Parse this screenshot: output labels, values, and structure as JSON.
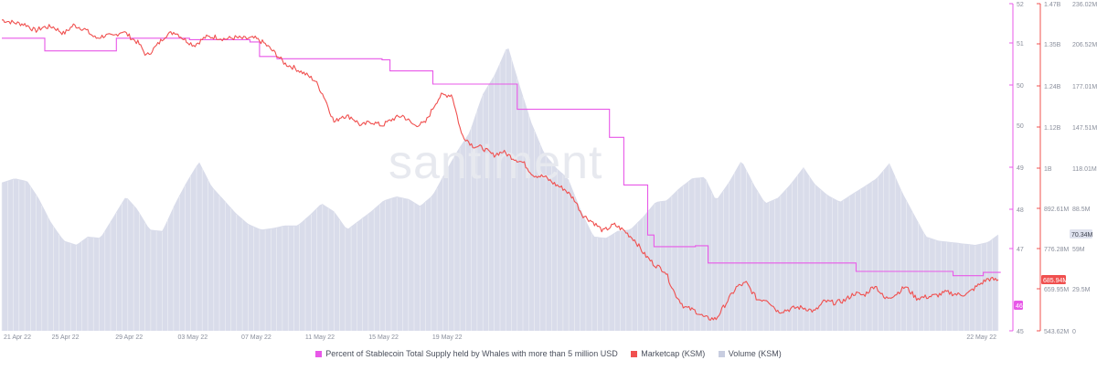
{
  "chart_data": {
    "type": "line",
    "title": "",
    "watermark": "santiment",
    "x_labels": [
      "21 Apr 22",
      "25 Apr 22",
      "29 Apr 22",
      "03 May 22",
      "07 May 22",
      "11 May 22",
      "15 May 22",
      "19 May 22",
      "22 May 22"
    ],
    "axes": {
      "percent": {
        "ticks": [
          "52",
          "51",
          "50",
          "49",
          "48",
          "47",
          "45"
        ],
        "ylim": [
          45,
          52
        ],
        "color": "#e858e8"
      },
      "marketcap": {
        "ticks": [
          "1.47B",
          "1.35B",
          "1.24B",
          "1.12B",
          "1B",
          "892.61M",
          "776.28M",
          "659.95M",
          "543.62M"
        ],
        "ylim": [
          543620000,
          1470000000
        ],
        "color": "#f0504f"
      },
      "volume": {
        "ticks": [
          "236.02M",
          "206.52M",
          "177.01M",
          "147.51M",
          "118.01M",
          "88.5M",
          "59M",
          "29.5M",
          "0"
        ],
        "ylim": [
          0,
          236020000
        ],
        "color": "#c8cde0"
      }
    },
    "current_labels": {
      "percent": "46",
      "marketcap": "685.94M",
      "volume": "70.34M"
    },
    "series": [
      {
        "name": "Percent of Stablecoin Total Supply held by Whales with more than 5 million USD",
        "color": "#e858e8",
        "step": true,
        "x": [
          0,
          1.5,
          2.7,
          7.2,
          11.8,
          15.6,
          16.2,
          17.3,
          23.9,
          24.4,
          27.1,
          32.4,
          38.2,
          39.1,
          40.6,
          41.0,
          43.6,
          44.4,
          48.8,
          53.7,
          55.1,
          59.8,
          61.7,
          62.8
        ],
        "y": [
          51.26,
          51.26,
          50.99,
          51.26,
          51.23,
          51.18,
          50.87,
          50.82,
          50.8,
          50.56,
          50.28,
          49.74,
          49.14,
          48.12,
          47.05,
          46.8,
          46.82,
          46.45,
          46.45,
          46.27,
          46.27,
          46.18,
          46.25,
          46.25
        ]
      },
      {
        "name": "Marketcap (KSM)",
        "color": "#f0504f",
        "x": [
          0,
          0.8,
          1.5,
          2.1,
          2.6,
          3.2,
          3.9,
          4.5,
          5.2,
          5.9,
          6.5,
          7.0,
          7.6,
          8.2,
          8.6,
          9.1,
          9.7,
          10.3,
          10.9,
          11.5,
          12.1,
          12.8,
          13.4,
          14.0,
          14.7,
          15.2,
          15.9,
          16.5,
          17.2,
          17.8,
          18.4,
          19.1,
          19.7,
          20.3,
          20.9,
          21.4,
          22.0,
          22.6,
          23.2,
          23.9,
          24.6,
          25.2,
          25.9,
          26.6,
          27.3,
          27.6,
          28.3,
          28.9,
          29.6,
          30.2,
          30.9,
          31.5,
          32.1,
          32.8,
          33.4,
          34.1,
          34.8,
          35.4,
          36.0,
          36.5,
          37.2,
          37.8,
          38.5,
          39.1,
          39.8,
          40.4,
          41.0,
          41.7,
          42.3,
          42.9,
          43.6,
          44.2,
          44.9,
          45.5,
          46.2,
          46.8,
          47.5,
          48.1,
          48.8,
          49.4,
          50.0,
          50.5,
          51.1,
          51.7,
          52.4,
          53.0,
          53.6,
          54.2,
          54.9,
          55.5,
          56.2,
          56.8,
          57.5,
          58.2,
          58.8,
          59.4,
          60.1,
          60.7,
          61.4,
          62.0,
          62.7
        ],
        "y": [
          1424,
          1416,
          1411,
          1393,
          1403,
          1405,
          1385,
          1409,
          1398,
          1372,
          1380,
          1377,
          1393,
          1371,
          1358,
          1322,
          1349,
          1381,
          1390,
          1368,
          1352,
          1375,
          1376,
          1370,
          1374,
          1371,
          1372,
          1358,
          1329,
          1300,
          1288,
          1270,
          1252,
          1203,
          1133,
          1153,
          1148,
          1124,
          1136,
          1125,
          1144,
          1153,
          1126,
          1131,
          1191,
          1210,
          1212,
          1100,
          1068,
          1062,
          1041,
          1051,
          1034,
          1019,
          985,
          980,
          958,
          944,
          915,
          872,
          850,
          826,
          844,
          828,
          800,
          760,
          732,
          713,
          650,
          611,
          600,
          580,
          577,
          620,
          668,
          679,
          632,
          633,
          598,
          603,
          610,
          608,
          598,
          627,
          623,
          630,
          650,
          644,
          673,
          634,
          647,
          669,
          636,
          640,
          644,
          653,
          646,
          648,
          673,
          691,
          686
        ]
      },
      {
        "name": "Volume (KSM)",
        "color": "#c8cde0",
        "area": true,
        "x": [
          0,
          0.8,
          1.6,
          2.3,
          3.1,
          3.9,
          4.7,
          5.4,
          6.2,
          7.0,
          7.8,
          8.5,
          9.3,
          10.1,
          10.9,
          11.6,
          12.4,
          13.2,
          14.0,
          14.7,
          15.5,
          16.3,
          17.0,
          17.8,
          18.6,
          19.4,
          20.1,
          20.9,
          21.7,
          22.5,
          23.2,
          24.0,
          24.8,
          25.6,
          26.3,
          27.1,
          27.9,
          28.7,
          29.4,
          30.2,
          31.0,
          31.8,
          32.5,
          33.3,
          34.1,
          34.9,
          35.6,
          36.4,
          37.2,
          38.0,
          38.7,
          39.5,
          40.3,
          41.1,
          41.8,
          42.6,
          43.4,
          44.2,
          44.9,
          45.7,
          46.5,
          47.3,
          48.0,
          48.8,
          49.6,
          50.4,
          51.1,
          51.9,
          52.7,
          53.5,
          54.2,
          55.0,
          55.8,
          56.6,
          57.3,
          58.1,
          58.9,
          59.7,
          60.4,
          61.2,
          62.0,
          62.7
        ],
        "y": [
          107,
          110,
          108,
          96,
          78,
          65,
          62,
          68,
          67,
          82,
          97,
          88,
          73,
          72,
          92,
          107,
          122,
          104,
          94,
          85,
          77,
          73,
          74,
          76,
          76,
          84,
          92,
          86,
          73,
          80,
          86,
          94,
          97,
          95,
          90,
          98,
          115,
          131,
          143,
          170,
          185,
          206,
          179,
          150,
          128,
          117,
          110,
          87,
          68,
          67,
          72,
          73,
          82,
          93,
          94,
          103,
          110,
          111,
          94,
          107,
          123,
          105,
          92,
          96,
          106,
          118,
          106,
          98,
          93,
          99,
          104,
          110,
          121,
          100,
          85,
          68,
          65,
          64,
          63,
          62,
          64,
          70
        ]
      }
    ]
  },
  "legend": [
    {
      "label": "Percent of Stablecoin Total Supply held by Whales with more than 5 million USD",
      "color": "#e858e8"
    },
    {
      "label": "Marketcap (KSM)",
      "color": "#f0504f"
    },
    {
      "label": "Volume (KSM)",
      "color": "#c8cde0"
    }
  ]
}
